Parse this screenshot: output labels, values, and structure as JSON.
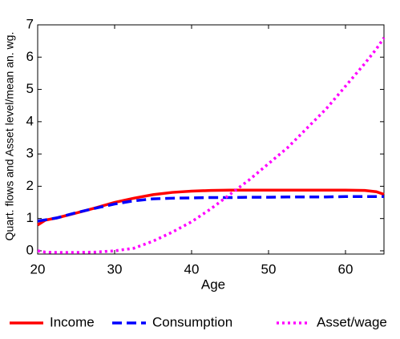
{
  "chart_data": {
    "type": "line",
    "x_label": "Age",
    "y_label": "Quart. flows and Asset level/mean an. wg.",
    "x": [
      20,
      21,
      22.5,
      25,
      27.5,
      30,
      32.5,
      35,
      37.5,
      40,
      42.5,
      45,
      47.5,
      50,
      52.5,
      55,
      57.5,
      60,
      62.5,
      64,
      65
    ],
    "series": [
      {
        "name": "Income",
        "color": "#ff0000",
        "style": "solid",
        "values": [
          0.8,
          0.95,
          1.02,
          1.17,
          1.33,
          1.5,
          1.63,
          1.74,
          1.81,
          1.85,
          1.87,
          1.88,
          1.88,
          1.88,
          1.88,
          1.88,
          1.88,
          1.88,
          1.87,
          1.83,
          1.75
        ]
      },
      {
        "name": "Consumption",
        "color": "#0000ff",
        "style": "dashed",
        "values": [
          0.92,
          0.96,
          1.02,
          1.18,
          1.32,
          1.45,
          1.55,
          1.61,
          1.63,
          1.64,
          1.65,
          1.65,
          1.66,
          1.66,
          1.67,
          1.67,
          1.67,
          1.68,
          1.68,
          1.68,
          1.68
        ]
      },
      {
        "name": "Asset/wage",
        "color": "#ff00ff",
        "style": "dotted",
        "values": [
          0,
          -0.04,
          -0.05,
          -0.05,
          -0.04,
          0,
          0.08,
          0.3,
          0.58,
          0.9,
          1.3,
          1.75,
          2.2,
          2.7,
          3.2,
          3.8,
          4.4,
          5.1,
          5.8,
          6.25,
          6.6
        ]
      }
    ],
    "xlim": [
      20,
      65
    ],
    "xticks": [
      20,
      30,
      40,
      50,
      60
    ],
    "ylim": [
      -0.1,
      7
    ],
    "yticks": [
      0,
      1,
      2,
      3,
      4,
      5,
      6,
      7
    ],
    "grid": false,
    "legend": "bottom"
  }
}
